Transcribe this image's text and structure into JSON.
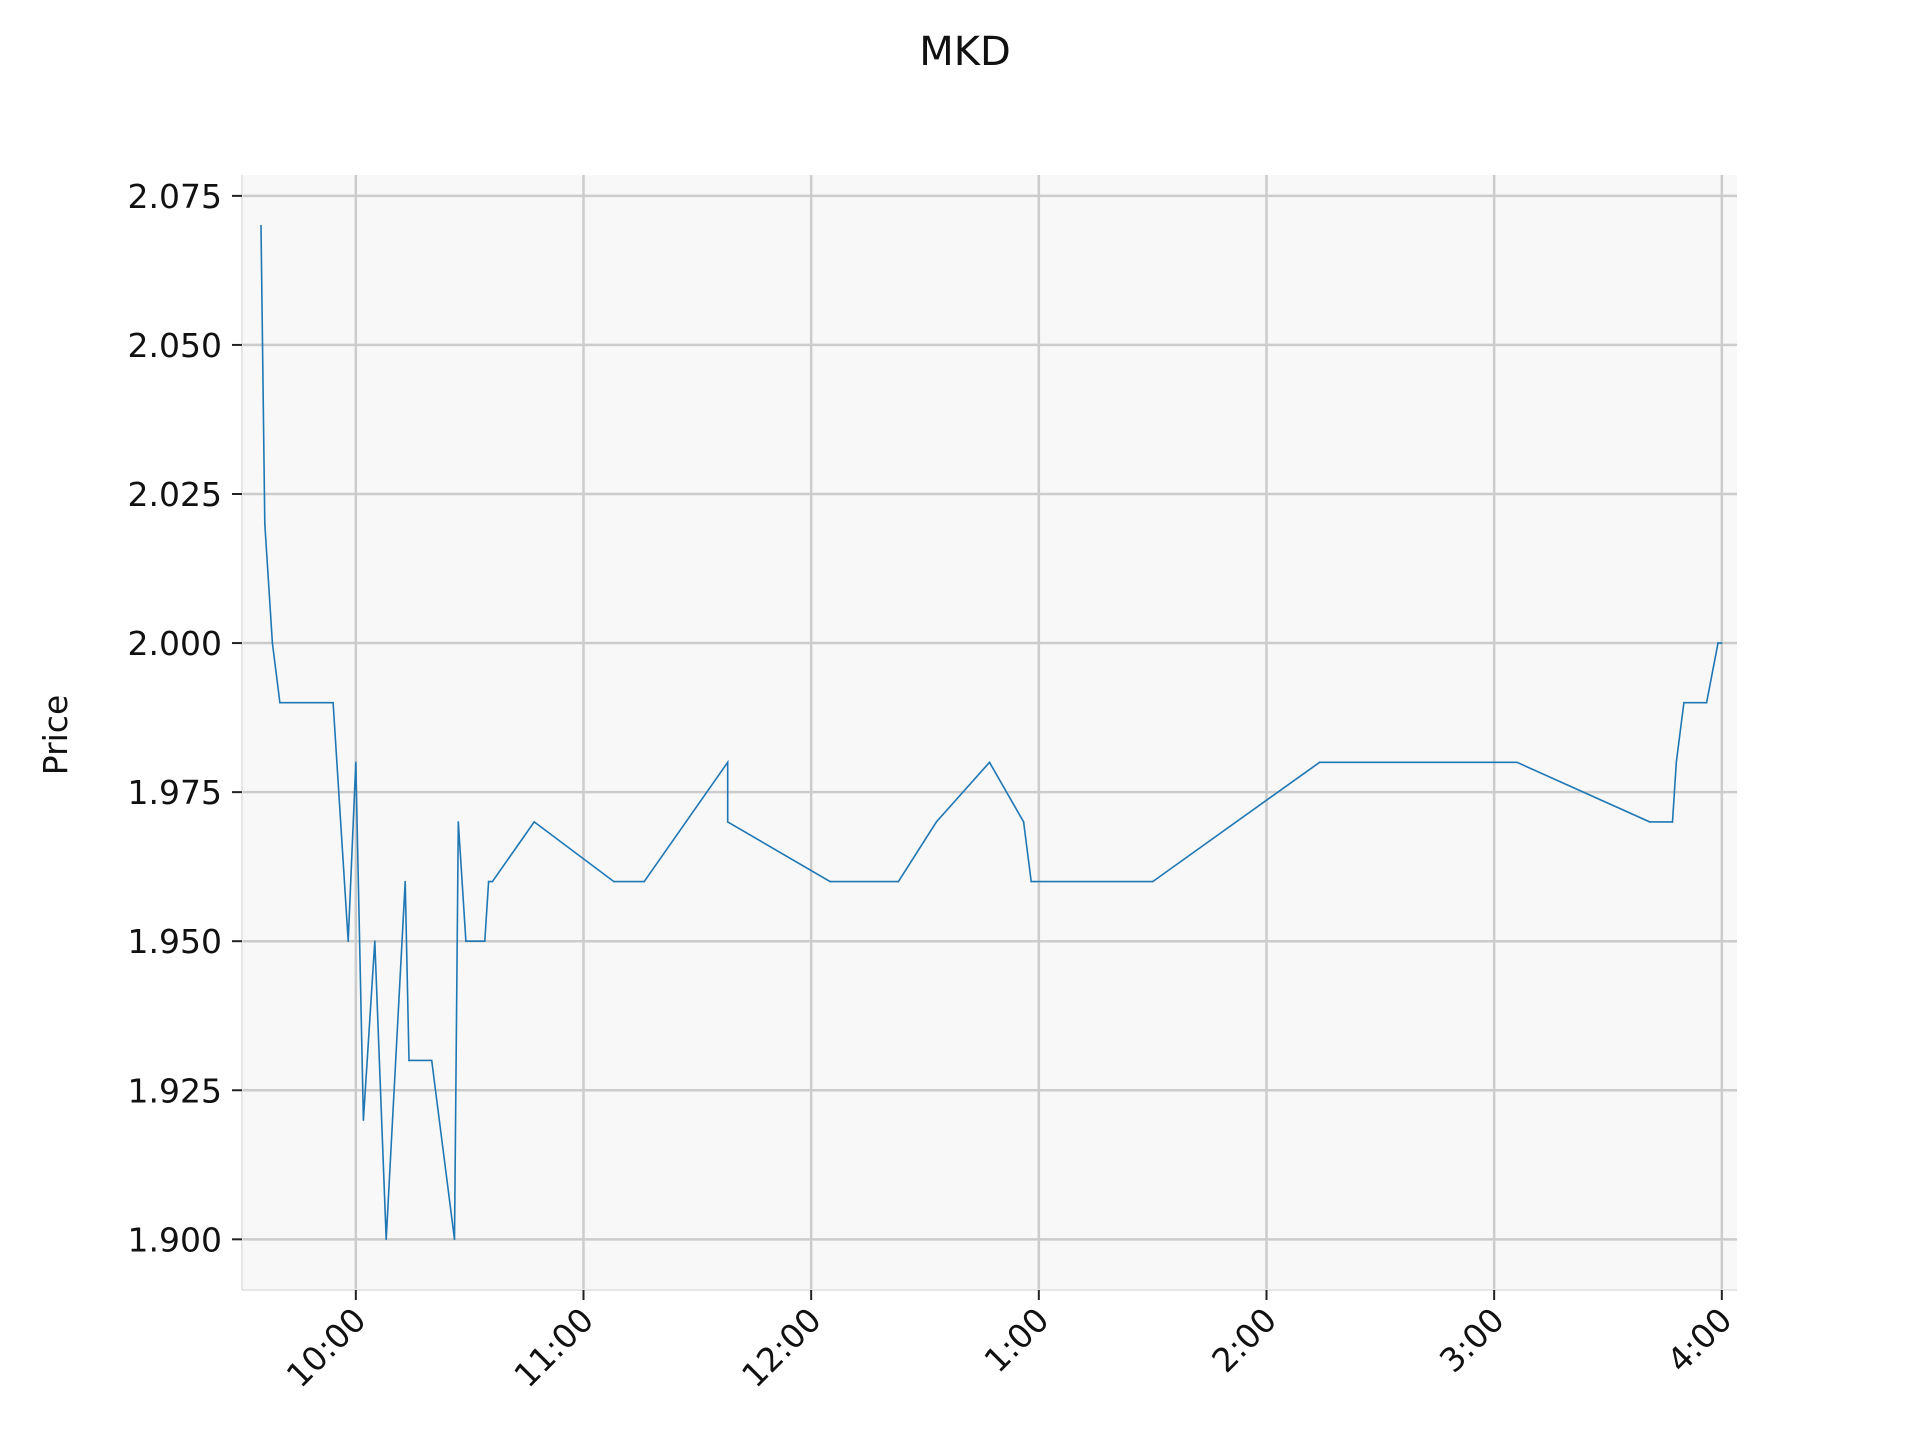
{
  "chart_data": {
    "type": "line",
    "title": "MKD",
    "xlabel": "",
    "ylabel": "Price",
    "grid": true,
    "xlim": [
      "09:30",
      "16:04"
    ],
    "ylim": [
      1.8915,
      2.0785
    ],
    "x_ticks": [
      "10:00",
      "11:00",
      "12:00",
      "1:00",
      "2:00",
      "3:00",
      "4:00"
    ],
    "y_ticks": [
      "1.900",
      "1.925",
      "1.950",
      "1.975",
      "2.000",
      "2.025",
      "2.050",
      "2.075"
    ],
    "series": [
      {
        "values": [
          {
            "x": "09:35",
            "y": 2.07
          },
          {
            "x": "09:36",
            "y": 2.02
          },
          {
            "x": "09:38",
            "y": 2.0
          },
          {
            "x": "09:40",
            "y": 1.99
          },
          {
            "x": "09:54",
            "y": 1.99
          },
          {
            "x": "09:58",
            "y": 1.95
          },
          {
            "x": "10:00",
            "y": 1.98
          },
          {
            "x": "10:02",
            "y": 1.92
          },
          {
            "x": "10:05",
            "y": 1.95
          },
          {
            "x": "10:08",
            "y": 1.9
          },
          {
            "x": "10:13",
            "y": 1.96
          },
          {
            "x": "10:14",
            "y": 1.93
          },
          {
            "x": "10:20",
            "y": 1.93
          },
          {
            "x": "10:26",
            "y": 1.9
          },
          {
            "x": "10:27",
            "y": 1.97
          },
          {
            "x": "10:29",
            "y": 1.95
          },
          {
            "x": "10:34",
            "y": 1.95
          },
          {
            "x": "10:35",
            "y": 1.96
          },
          {
            "x": "10:36",
            "y": 1.96
          },
          {
            "x": "10:47",
            "y": 1.97
          },
          {
            "x": "11:08",
            "y": 1.96
          },
          {
            "x": "11:16",
            "y": 1.96
          },
          {
            "x": "11:38",
            "y": 1.98
          },
          {
            "x": "11:38",
            "y": 1.97
          },
          {
            "x": "12:05",
            "y": 1.96
          },
          {
            "x": "12:23",
            "y": 1.96
          },
          {
            "x": "12:33",
            "y": 1.97
          },
          {
            "x": "12:47",
            "y": 1.98
          },
          {
            "x": "12:56",
            "y": 1.97
          },
          {
            "x": "12:58",
            "y": 1.96
          },
          {
            "x": "13:30",
            "y": 1.96
          },
          {
            "x": "14:14",
            "y": 1.98
          },
          {
            "x": "15:06",
            "y": 1.98
          },
          {
            "x": "15:41",
            "y": 1.97
          },
          {
            "x": "15:47",
            "y": 1.97
          },
          {
            "x": "15:48",
            "y": 1.98
          },
          {
            "x": "15:50",
            "y": 1.99
          },
          {
            "x": "15:56",
            "y": 1.99
          },
          {
            "x": "15:59",
            "y": 2.0
          },
          {
            "x": "16:00",
            "y": 2.0
          }
        ],
        "color": "#1f77b4"
      }
    ],
    "colors": {
      "plot_background": "#f8f8f8",
      "grid": "#cccccc",
      "line": "#1f77b4"
    }
  }
}
